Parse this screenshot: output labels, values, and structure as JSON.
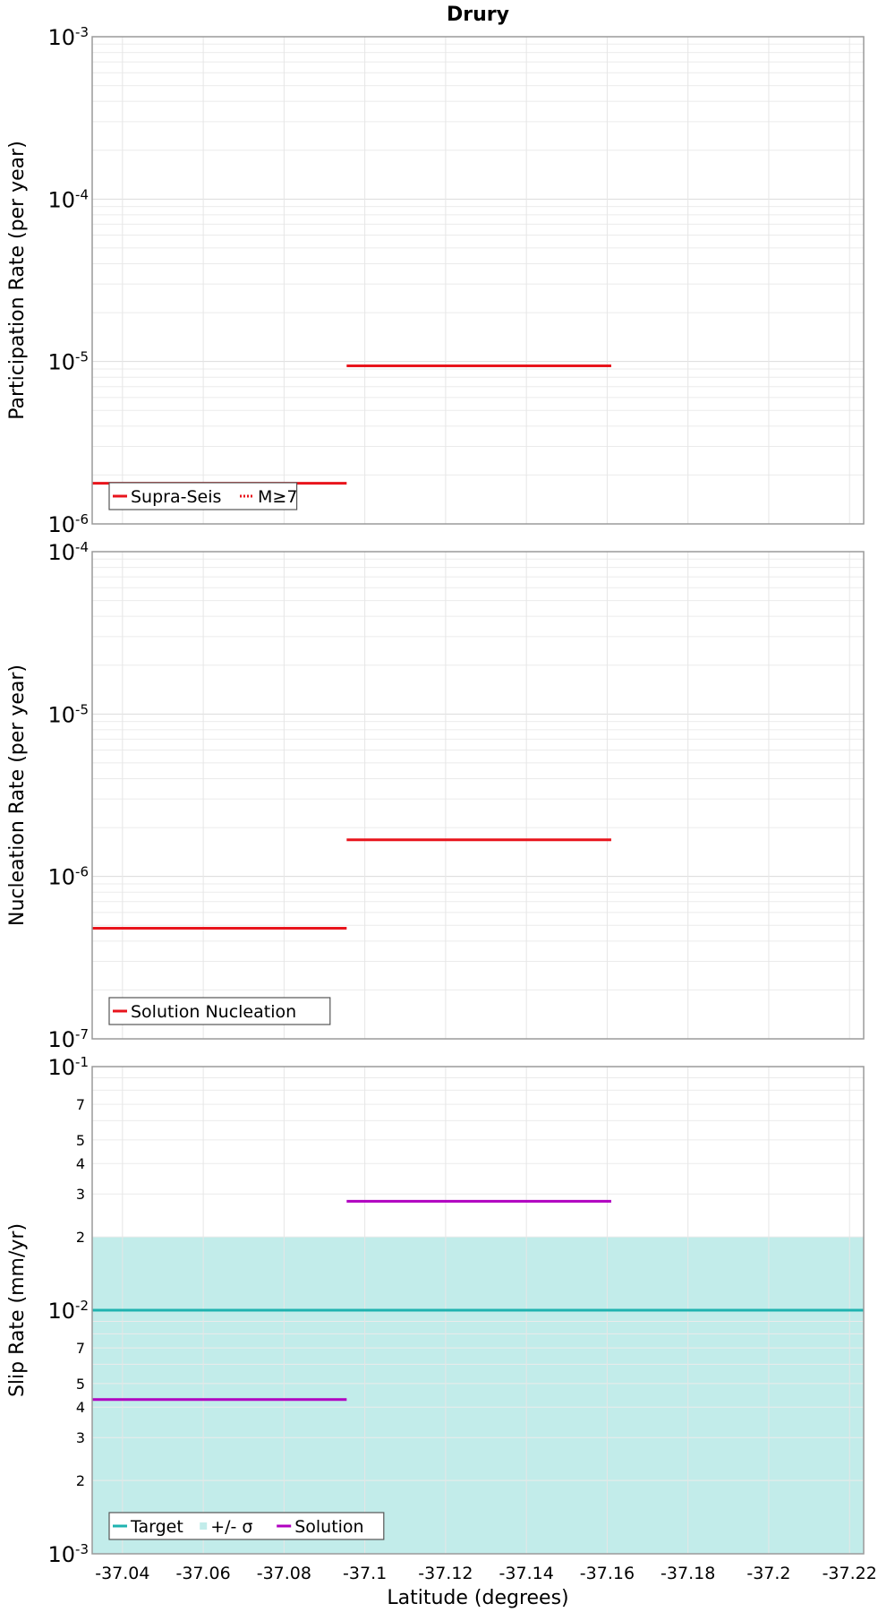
{
  "chart_data": [
    {
      "type": "line",
      "panel": "participation",
      "title": "Drury",
      "ylabel": "Participation Rate (per year)",
      "yscale": "log",
      "ylim": [
        1e-06,
        0.001
      ],
      "xlim": [
        -37.0325,
        -37.2235
      ],
      "x_reversed": true,
      "y_major_ticks": [
        {
          "base": "10",
          "exp": "-6"
        },
        {
          "base": "10",
          "exp": "-5"
        },
        {
          "base": "10",
          "exp": "-4"
        },
        {
          "base": "10",
          "exp": "-3"
        }
      ],
      "series": [
        {
          "name": "Supra-Seis",
          "style": "solid",
          "color": "#e8141c",
          "segments": [
            {
              "x1": -37.0325,
              "x2": -37.0955,
              "y": 1.78e-06
            },
            {
              "x1": -37.0955,
              "x2": -37.161,
              "y": 9.4e-06
            }
          ]
        },
        {
          "name": "M≥7",
          "style": "dotted",
          "color": "#e8141c",
          "segments": []
        }
      ],
      "legend": [
        "Supra-Seis",
        "M≥7"
      ],
      "legend_position": "bottom-left"
    },
    {
      "type": "line",
      "panel": "nucleation",
      "ylabel": "Nucleation Rate (per year)",
      "yscale": "log",
      "ylim": [
        1e-07,
        0.0001
      ],
      "xlim": [
        -37.0325,
        -37.2235
      ],
      "x_reversed": true,
      "y_major_ticks": [
        {
          "base": "10",
          "exp": "-7"
        },
        {
          "base": "10",
          "exp": "-6"
        },
        {
          "base": "10",
          "exp": "-5"
        },
        {
          "base": "10",
          "exp": "-4"
        }
      ],
      "series": [
        {
          "name": "Solution Nucleation",
          "style": "solid",
          "color": "#e8141c",
          "segments": [
            {
              "x1": -37.0325,
              "x2": -37.0955,
              "y": 4.8e-07
            },
            {
              "x1": -37.0955,
              "x2": -37.161,
              "y": 1.68e-06
            }
          ]
        }
      ],
      "legend": [
        "Solution Nucleation"
      ],
      "legend_position": "bottom-left"
    },
    {
      "type": "line",
      "panel": "slip",
      "ylabel": "Slip Rate (mm/yr)",
      "xlabel": "Latitude (degrees)",
      "yscale": "log",
      "ylim": [
        0.001,
        0.1
      ],
      "xlim": [
        -37.0325,
        -37.2235
      ],
      "x_reversed": true,
      "x_ticks": [
        "-37.04",
        "-37.06",
        "-37.08",
        "-37.1",
        "-37.12",
        "-37.14",
        "-37.16",
        "-37.18",
        "-37.2",
        "-37.22"
      ],
      "y_major_ticks": [
        {
          "base": "10",
          "exp": "-3"
        },
        {
          "base": "10",
          "exp": "-2"
        },
        {
          "base": "10",
          "exp": "-1"
        }
      ],
      "y_minor_labels": [
        "2",
        "3",
        "4",
        "5",
        "7"
      ],
      "band": {
        "name": "+/- σ",
        "color": "#c2ecea",
        "low": 0.001,
        "high": 0.02
      },
      "series": [
        {
          "name": "Target",
          "style": "solid",
          "color": "#1fb3b0",
          "segments": [
            {
              "x1": -37.0325,
              "x2": -37.2235,
              "y": 0.01
            }
          ]
        },
        {
          "name": "Solution",
          "style": "solid",
          "color": "#b000c0",
          "segments": [
            {
              "x1": -37.0325,
              "x2": -37.0955,
              "y": 0.0043
            },
            {
              "x1": -37.0955,
              "x2": -37.161,
              "y": 0.028
            }
          ]
        }
      ],
      "legend": [
        "Target",
        "+/- σ",
        "Solution"
      ],
      "legend_position": "bottom-left"
    }
  ]
}
